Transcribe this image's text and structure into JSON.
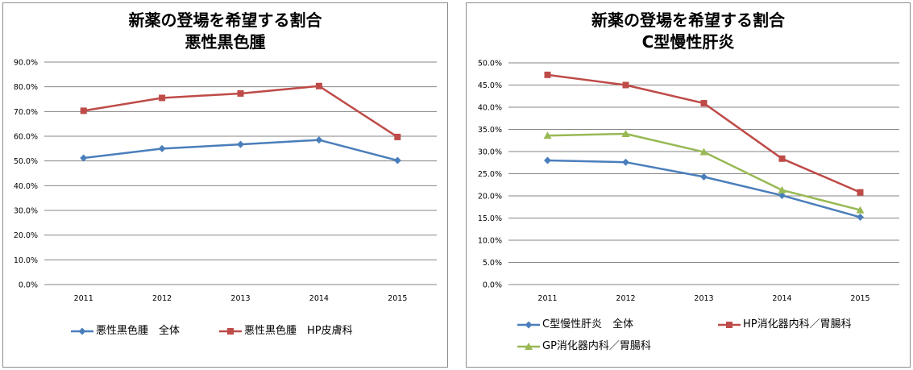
{
  "chart_data": [
    {
      "type": "line",
      "title": "新薬の登場を希望する割合",
      "subtitle": "悪性黒色腫",
      "categories": [
        "2011",
        "2012",
        "2013",
        "2014",
        "2015"
      ],
      "ylim": [
        0,
        0.9
      ],
      "ytick_step": 0.1,
      "ytick_decimals": 1,
      "grid": true,
      "legend_position": "bottom",
      "series": [
        {
          "name": "悪性黒色腫　全体",
          "color": "#4a7ebb",
          "marker": "diamond",
          "values": [
            0.512,
            0.55,
            0.567,
            0.585,
            0.502
          ]
        },
        {
          "name": "悪性黒色腫　HP皮膚科",
          "color": "#be4b48",
          "marker": "square",
          "values": [
            0.703,
            0.755,
            0.773,
            0.803,
            0.597
          ]
        }
      ]
    },
    {
      "type": "line",
      "title": "新薬の登場を希望する割合",
      "subtitle": "C型慢性肝炎",
      "categories": [
        "2011",
        "2012",
        "2013",
        "2014",
        "2015"
      ],
      "ylim": [
        0,
        0.5
      ],
      "ytick_step": 0.05,
      "ytick_decimals": 1,
      "grid": true,
      "legend_position": "bottom",
      "series": [
        {
          "name": "C型慢性肝炎　全体",
          "color": "#4a7ebb",
          "marker": "diamond",
          "values": [
            0.28,
            0.276,
            0.243,
            0.201,
            0.152
          ]
        },
        {
          "name": "HP消化器内科／胃腸科",
          "color": "#be4b48",
          "marker": "square",
          "values": [
            0.473,
            0.45,
            0.409,
            0.284,
            0.208
          ]
        },
        {
          "name": "GP消化器内科／胃腸科",
          "color": "#98b954",
          "marker": "triangle",
          "values": [
            0.336,
            0.34,
            0.299,
            0.213,
            0.168
          ]
        }
      ]
    }
  ]
}
